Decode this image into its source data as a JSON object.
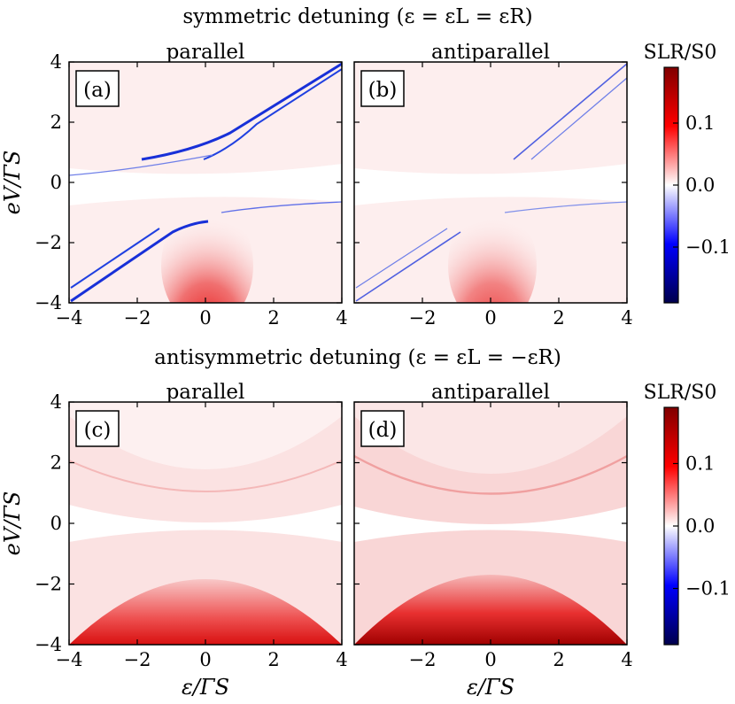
{
  "figure": {
    "top_title": "symmetric detuning (ε = εL = εR)",
    "bottom_title": "antisymmetric detuning (ε = εL = −εR)"
  },
  "colors": {
    "negative_max": "#00004c",
    "negative": "#0000ff",
    "zero": "#ffffff",
    "positive": "#ff0000",
    "positive_max": "#800000",
    "panel_bg": "#fdeeee"
  },
  "chart_data": [
    {
      "type": "heatmap",
      "panel": "(a)",
      "title": "parallel",
      "xlabel": "",
      "ylabel": "eV/ΓS",
      "xlim": [
        -4,
        4
      ],
      "ylim": [
        -4,
        4
      ],
      "xticks": [
        "−4",
        "−2",
        "0",
        "2",
        "4"
      ],
      "yticks": [
        "−4",
        "−2",
        "0",
        "2",
        "4"
      ],
      "features": "blue negative lines along eV≈ε diagonal; red lobe below eV≈0 near ε=0"
    },
    {
      "type": "heatmap",
      "panel": "(b)",
      "title": "antiparallel",
      "xlabel": "",
      "ylabel": "",
      "xlim": [
        -4,
        4
      ],
      "ylim": [
        -4,
        4
      ],
      "xticks": [
        "−2",
        "0",
        "2",
        "4"
      ],
      "features": "weaker blue diagonal lines; red lobe near ε=0 below eV=0"
    },
    {
      "type": "heatmap",
      "panel": "(c)",
      "title": "parallel",
      "xlabel": "ε/ΓS",
      "ylabel": "eV/ΓS",
      "xlim": [
        -4,
        4
      ],
      "ylim": [
        -4,
        4
      ],
      "xticks": [
        "−4",
        "−2",
        "0",
        "2",
        "4"
      ],
      "yticks": [
        "−4",
        "−2",
        "0",
        "2",
        "4"
      ],
      "features": "symmetric hyperbolic red bands; strong red region at large negative eV"
    },
    {
      "type": "heatmap",
      "panel": "(d)",
      "title": "antiparallel",
      "xlabel": "ε/ΓS",
      "ylabel": "",
      "xlim": [
        -4,
        4
      ],
      "ylim": [
        -4,
        4
      ],
      "xticks": [
        "−2",
        "0",
        "2",
        "4"
      ],
      "features": "symmetric hyperbolic red bands, darker red at bottom edges"
    },
    {
      "type": "colorbar",
      "label": "SLR/S0",
      "range": [
        -0.19,
        0.19
      ],
      "ticks": [
        "0.1",
        "0.0",
        "−0.1"
      ],
      "tick_values": [
        0.1,
        0.0,
        -0.1
      ]
    }
  ]
}
